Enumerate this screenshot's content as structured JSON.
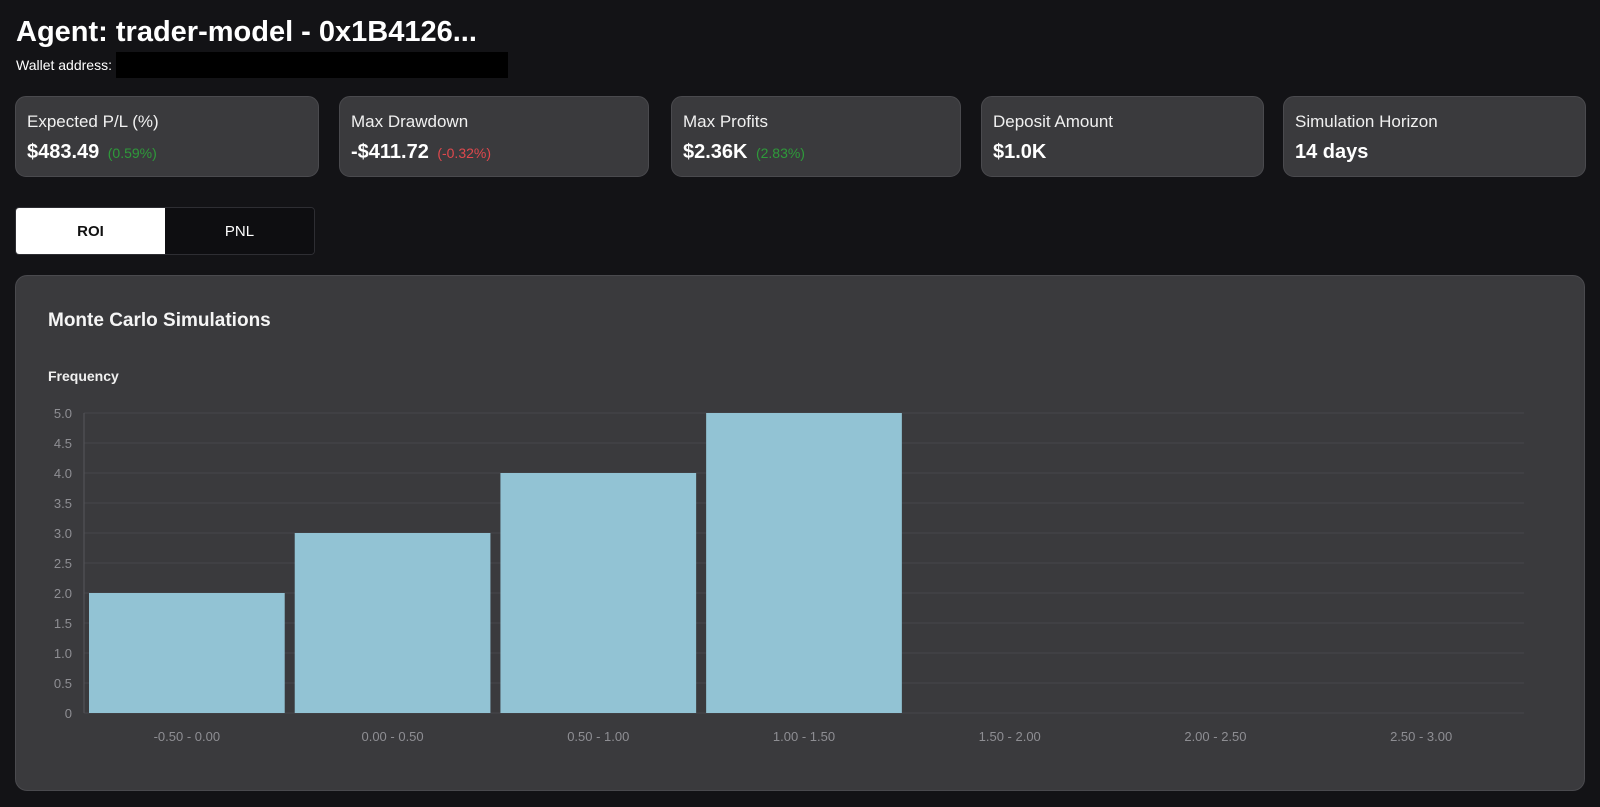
{
  "header": {
    "title": "Agent: trader-model - 0x1B4126...",
    "wallet_label": "Wallet address:",
    "wallet_value": ""
  },
  "stats": [
    {
      "label": "Expected P/L (%)",
      "value": "$483.49",
      "pct": "(0.59%)",
      "tone": "positive"
    },
    {
      "label": "Max Drawdown",
      "value": "-$411.72",
      "pct": "(-0.32%)",
      "tone": "negative"
    },
    {
      "label": "Max Profits",
      "value": "$2.36K",
      "pct": "(2.83%)",
      "tone": "positive"
    },
    {
      "label": "Deposit Amount",
      "value": "$1.0K",
      "pct": "",
      "tone": "none"
    },
    {
      "label": "Simulation Horizon",
      "value": "14 days",
      "pct": "",
      "tone": "none"
    }
  ],
  "tabs": [
    {
      "label": "ROI",
      "active": true
    },
    {
      "label": "PNL",
      "active": false
    }
  ],
  "chart": {
    "title": "Monte Carlo Simulations",
    "ylabel": "Frequency"
  },
  "colors": {
    "background": "#131316",
    "card": "#3a3a3d",
    "bar": "#92c3d4",
    "positive": "#2e9a3a",
    "negative": "#e0484d"
  },
  "chart_data": {
    "type": "bar",
    "title": "Monte Carlo Simulations",
    "xlabel": "",
    "ylabel": "Frequency",
    "categories": [
      "-0.50 - 0.00",
      "0.00 - 0.50",
      "0.50 - 1.00",
      "1.00 - 1.50",
      "1.50 - 2.00",
      "2.00 - 2.50",
      "2.50 - 3.00"
    ],
    "values": [
      2,
      3,
      4,
      5,
      0,
      0,
      0
    ],
    "ylim": [
      0,
      5
    ],
    "yticks": [
      "0",
      "0.5",
      "1.0",
      "1.5",
      "2.0",
      "2.5",
      "3.0",
      "3.5",
      "4.0",
      "4.5",
      "5.0"
    ],
    "grid": true,
    "legend": "none"
  }
}
